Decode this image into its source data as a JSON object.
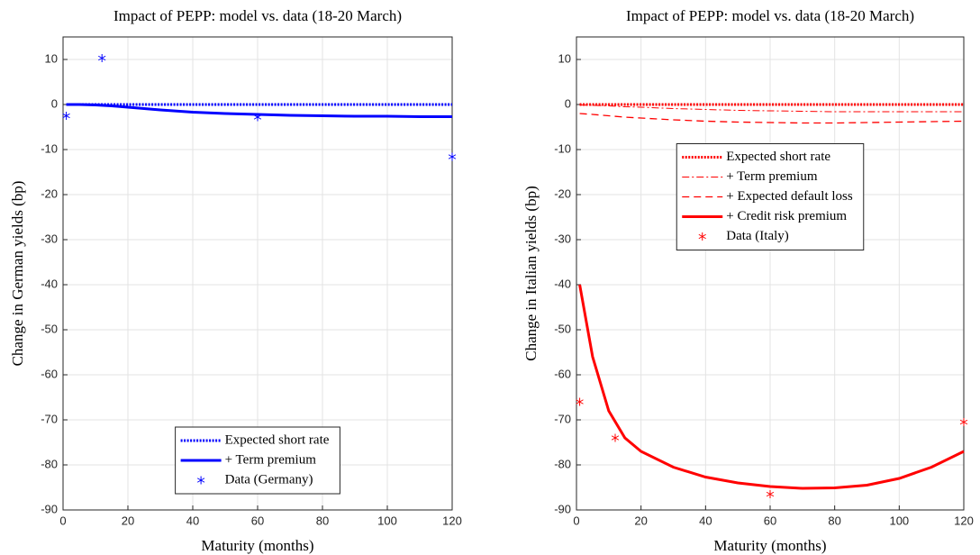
{
  "chart_data": [
    {
      "type": "line",
      "title": "Impact of PEPP: model vs. data (18-20 March)",
      "xlabel": "Maturity (months)",
      "ylabel": "Change in German yields (bp)",
      "xlim": [
        0,
        120
      ],
      "ylim": [
        -90,
        15
      ],
      "xticks": [
        0,
        20,
        40,
        60,
        80,
        100,
        120
      ],
      "yticks": [
        -90,
        -80,
        -70,
        -60,
        -50,
        -40,
        -30,
        -20,
        -10,
        0,
        10
      ],
      "grid": true,
      "legend": "lower center",
      "series": [
        {
          "name": "Expected short rate",
          "color": "#0000ff",
          "mode": "lines",
          "line_style": "dotted",
          "x": [
            1,
            5,
            10,
            15,
            20,
            30,
            40,
            50,
            60,
            70,
            80,
            90,
            100,
            110,
            120
          ],
          "values": [
            0,
            0,
            0,
            0,
            0,
            0,
            0,
            0,
            0,
            0,
            0,
            0,
            0,
            0,
            0
          ]
        },
        {
          "name": "+ Term premium",
          "color": "#0000ff",
          "mode": "lines",
          "line_style": "solid",
          "x": [
            1,
            5,
            10,
            15,
            20,
            30,
            40,
            50,
            60,
            70,
            80,
            90,
            100,
            110,
            120
          ],
          "values": [
            0,
            0,
            -0.1,
            -0.3,
            -0.6,
            -1.2,
            -1.7,
            -2.0,
            -2.2,
            -2.4,
            -2.5,
            -2.6,
            -2.6,
            -2.7,
            -2.7
          ]
        },
        {
          "name": "Data (Germany)",
          "color": "#0000ff",
          "mode": "markers",
          "x": [
            1,
            12,
            60,
            120
          ],
          "values": [
            -2.5,
            10.3,
            -2.8,
            -11.6
          ]
        }
      ]
    },
    {
      "type": "line",
      "title": "Impact of PEPP: model vs. data (18-20 March)",
      "xlabel": "Maturity (months)",
      "ylabel": "Change in Italian yields (bp)",
      "xlim": [
        0,
        120
      ],
      "ylim": [
        -90,
        15
      ],
      "xticks": [
        0,
        20,
        40,
        60,
        80,
        100,
        120
      ],
      "yticks": [
        -90,
        -80,
        -70,
        -60,
        -50,
        -40,
        -30,
        -20,
        -10,
        0,
        10
      ],
      "grid": true,
      "legend": "center",
      "series": [
        {
          "name": "Expected short rate",
          "color": "#ff0000",
          "mode": "lines",
          "line_style": "dotted",
          "x": [
            1,
            5,
            10,
            15,
            20,
            30,
            40,
            50,
            60,
            70,
            80,
            90,
            100,
            110,
            120
          ],
          "values": [
            0,
            0,
            0,
            0,
            0,
            0,
            0,
            0,
            0,
            0,
            0,
            0,
            0,
            0,
            0
          ]
        },
        {
          "name": "+ Term premium",
          "color": "#ff0000",
          "mode": "lines",
          "line_style": "dashdot",
          "x": [
            1,
            5,
            10,
            15,
            20,
            30,
            40,
            50,
            60,
            70,
            80,
            90,
            100,
            110,
            120
          ],
          "values": [
            -0.1,
            -0.2,
            -0.3,
            -0.5,
            -0.6,
            -0.9,
            -1.1,
            -1.3,
            -1.4,
            -1.5,
            -1.6,
            -1.6,
            -1.6,
            -1.6,
            -1.6
          ]
        },
        {
          "name": "+ Expected default loss",
          "color": "#ff0000",
          "mode": "lines",
          "line_style": "dashed",
          "x": [
            1,
            5,
            10,
            15,
            20,
            30,
            40,
            50,
            60,
            70,
            80,
            90,
            100,
            110,
            120
          ],
          "values": [
            -2,
            -2.2,
            -2.5,
            -2.8,
            -3.0,
            -3.4,
            -3.7,
            -3.9,
            -4.0,
            -4.1,
            -4.1,
            -4.0,
            -3.9,
            -3.8,
            -3.7
          ]
        },
        {
          "name": "+ Credit risk premium",
          "color": "#ff0000",
          "mode": "lines",
          "line_style": "solid",
          "x": [
            1,
            5,
            10,
            15,
            20,
            30,
            40,
            50,
            60,
            70,
            80,
            90,
            100,
            110,
            120
          ],
          "values": [
            -40,
            -56,
            -68,
            -74,
            -77,
            -80.5,
            -82.7,
            -84,
            -84.8,
            -85.2,
            -85.1,
            -84.5,
            -83,
            -80.5,
            -77
          ]
        },
        {
          "name": "Data (Italy)",
          "color": "#ff0000",
          "mode": "markers",
          "x": [
            1,
            12,
            60,
            120
          ],
          "values": [
            -66,
            -74,
            -86.5,
            -70.5
          ]
        }
      ]
    }
  ]
}
